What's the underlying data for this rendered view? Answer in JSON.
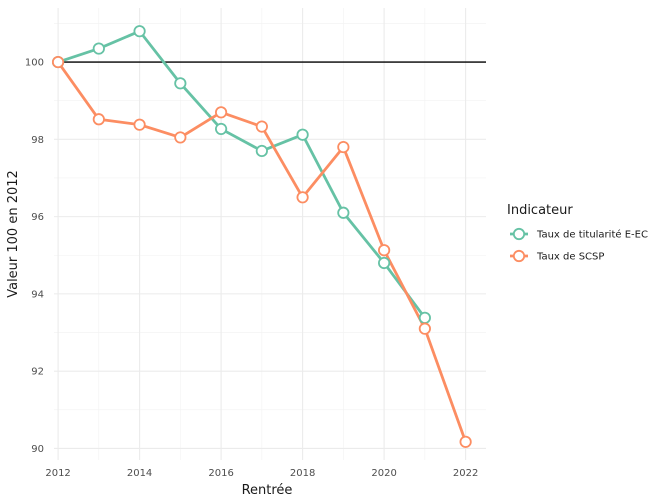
{
  "chart_data": {
    "type": "line",
    "xlabel": "Rentrée",
    "ylabel": "Valeur 100 en 2012",
    "xlim": [
      2011.9,
      2022.5
    ],
    "ylim": [
      89.7,
      101.4
    ],
    "x_ticks": [
      2012,
      2014,
      2016,
      2018,
      2020,
      2022
    ],
    "y_ticks": [
      90,
      92,
      94,
      96,
      98,
      100
    ],
    "reference_line": 100,
    "grid": true,
    "legend": {
      "title": "Indicateur",
      "position": "right"
    },
    "series": [
      {
        "name": "Taux de titularité E-EC",
        "color": "#66c2a5",
        "x": [
          2012,
          2013,
          2014,
          2015,
          2016,
          2017,
          2018,
          2019,
          2020,
          2021
        ],
        "y": [
          100,
          100.35,
          100.8,
          99.45,
          98.27,
          97.7,
          98.12,
          96.1,
          94.8,
          93.38
        ]
      },
      {
        "name": "Taux de SCSP",
        "color": "#fc8d62",
        "x": [
          2012,
          2013,
          2014,
          2015,
          2016,
          2017,
          2018,
          2019,
          2020,
          2021,
          2022
        ],
        "y": [
          100,
          98.52,
          98.38,
          98.05,
          98.7,
          98.33,
          96.5,
          97.8,
          95.13,
          93.1,
          90.17
        ]
      }
    ]
  }
}
